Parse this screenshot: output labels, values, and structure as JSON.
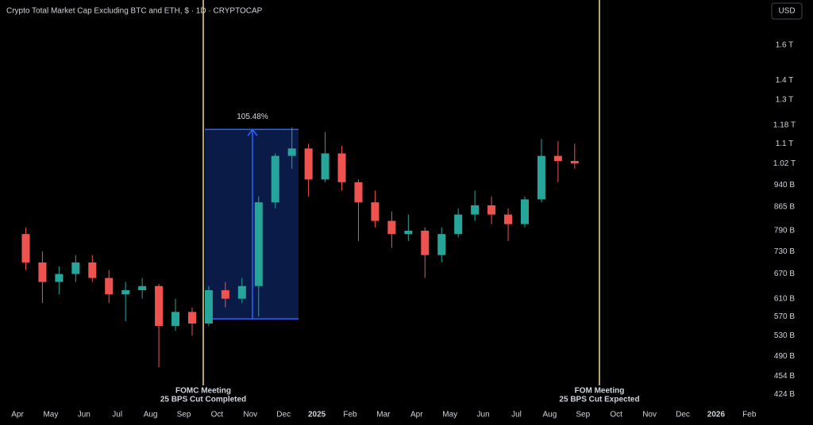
{
  "chart_data": {
    "type": "candlestick",
    "title": "Crypto Total Market Cap Excluding BTC and ETH, $ · 1D · CRYPTOCAP",
    "currency": "USD",
    "categories": [
      "Apr",
      null,
      "May",
      null,
      "Jun",
      null,
      "Jul",
      null,
      "Aug",
      null,
      "Sep",
      null,
      "Oct",
      null,
      "Nov",
      null,
      "Dec",
      null,
      "2025",
      null,
      "Feb",
      null,
      "Mar",
      null,
      "Apr",
      null,
      "May",
      null,
      "Jun",
      null,
      "Jul",
      null,
      "Aug",
      null,
      "Sep",
      null,
      "Oct",
      null,
      "Nov",
      null,
      "Dec",
      null,
      "2026",
      null,
      "Feb",
      null
    ],
    "open": [
      780,
      700,
      650,
      670,
      700,
      660,
      620,
      630,
      640,
      550,
      580,
      555,
      630,
      610,
      640,
      880,
      1050,
      1080,
      960,
      1060,
      950,
      880,
      820,
      780,
      790,
      720,
      780,
      840,
      870,
      840,
      810,
      890,
      1050,
      1030,
      null,
      null,
      null,
      null,
      null,
      null,
      null,
      null,
      null,
      null,
      null,
      null
    ],
    "high": [
      800,
      730,
      690,
      720,
      720,
      680,
      650,
      660,
      645,
      610,
      590,
      640,
      650,
      660,
      900,
      1060,
      1170,
      1100,
      1150,
      1090,
      960,
      920,
      850,
      840,
      800,
      800,
      860,
      920,
      900,
      860,
      900,
      1120,
      1110,
      1100,
      null,
      null,
      null,
      null,
      null,
      null,
      null,
      null,
      null,
      null,
      null,
      null
    ],
    "low": [
      680,
      600,
      620,
      650,
      650,
      600,
      560,
      610,
      470,
      540,
      530,
      550,
      590,
      600,
      570,
      860,
      1000,
      900,
      950,
      920,
      760,
      800,
      740,
      760,
      660,
      700,
      770,
      820,
      810,
      760,
      800,
      880,
      950,
      1000,
      null,
      null,
      null,
      null,
      null,
      null,
      null,
      null,
      null,
      null,
      null,
      null
    ],
    "close": [
      700,
      650,
      670,
      700,
      660,
      620,
      630,
      640,
      550,
      580,
      555,
      630,
      610,
      640,
      880,
      1050,
      1080,
      960,
      1060,
      950,
      880,
      820,
      780,
      790,
      720,
      780,
      840,
      870,
      840,
      810,
      890,
      1050,
      1030,
      1020,
      null,
      null,
      null,
      null,
      null,
      null,
      null,
      null,
      null,
      null,
      null,
      null
    ],
    "up_color": "#26a69a",
    "down_color": "#ef5350",
    "log_scale": true,
    "ylim": [
      408,
      1900
    ],
    "yticks": [
      {
        "value": 424,
        "label": "424 B"
      },
      {
        "value": 454,
        "label": "454 B"
      },
      {
        "value": 490,
        "label": "490 B"
      },
      {
        "value": 530,
        "label": "530 B"
      },
      {
        "value": 570,
        "label": "570 B"
      },
      {
        "value": 610,
        "label": "610 B"
      },
      {
        "value": 670,
        "label": "670 B"
      },
      {
        "value": 730,
        "label": "730 B"
      },
      {
        "value": 790,
        "label": "790 B"
      },
      {
        "value": 865,
        "label": "865 B"
      },
      {
        "value": 940,
        "label": "940 B"
      },
      {
        "value": 1020,
        "label": "1.02 T"
      },
      {
        "value": 1100,
        "label": "1.1 T"
      },
      {
        "value": 1180,
        "label": "1.18 T"
      },
      {
        "value": 1300,
        "label": "1.3 T"
      },
      {
        "value": 1400,
        "label": "1.4 T"
      },
      {
        "value": 1600,
        "label": "1.6 T"
      }
    ],
    "measure": {
      "low": 565,
      "high": 1161,
      "label": "105.48%"
    },
    "events": [
      {
        "line1": "FOMC Meeting",
        "line2": "25 BPS Cut Completed"
      },
      {
        "line1": "FOM Meeting",
        "line2": "25 BPS Cut Expected"
      }
    ]
  }
}
